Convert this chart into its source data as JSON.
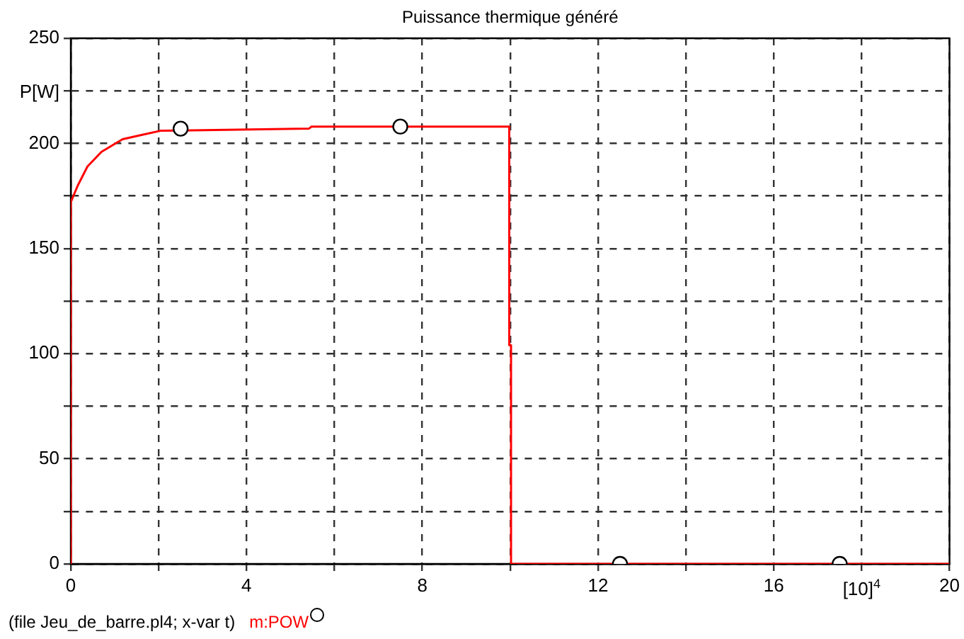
{
  "chart_data": {
    "type": "line",
    "title": "Puissance thermique généré",
    "xlabel": "[10]$^{4}$",
    "ylabel": "P[W]",
    "annotations": [
      "(file Jeu_de_barre.pl4; x-var t)"
    ],
    "series": [
      {
        "name": "m:POW",
        "color": "#ff0000",
        "x": [
          0,
          0,
          0.16,
          0.38,
          0.7,
          1.18,
          1.61,
          2.04,
          5.42,
          5.48,
          9.98,
          9.98,
          10.02,
          10.02,
          20
        ],
        "values": [
          0,
          172,
          180,
          189,
          196,
          202,
          204,
          206,
          207,
          208,
          208,
          104,
          104,
          0,
          0
        ]
      },
      {
        "type": "scatter",
        "color": "#000000",
        "marker": "circle",
        "x": [
          2.5,
          7.5,
          12.5,
          17.5
        ],
        "values": [
          207,
          208,
          0,
          0
        ]
      }
    ],
    "xlim": [
      0,
      20
    ],
    "xticks": [
      0,
      {
        "value": 2,
        "label": null
      },
      4,
      {
        "value": 6,
        "label": null
      },
      8,
      {
        "value": 10,
        "label": null
      },
      12,
      {
        "value": 14,
        "label": null
      },
      16,
      {
        "value": 18,
        "label": null
      },
      20
    ],
    "ylim": [
      0,
      250
    ],
    "yticks": [
      0,
      {
        "value": 25,
        "label": null
      },
      50,
      {
        "value": 75,
        "label": null
      },
      100,
      {
        "value": 125,
        "label": null
      },
      150,
      {
        "value": 175,
        "label": null
      },
      200,
      {
        "value": 225,
        "label": null
      },
      250
    ],
    "grid": true,
    "legend": "bottom",
    "line_style": "solid"
  }
}
